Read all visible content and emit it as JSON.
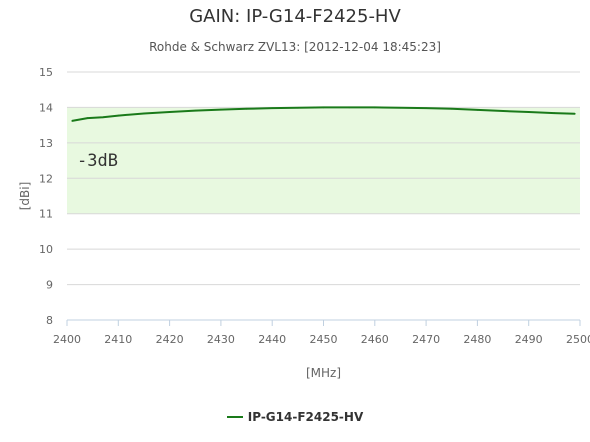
{
  "chart_data": {
    "type": "line",
    "title": "GAIN: IP-G14-F2425-HV",
    "subtitle": "Rohde & Schwarz ZVL13: [2012-12-04 18:45:23]",
    "xlabel": "[MHz]",
    "ylabel": "[dBi]",
    "xlim": [
      2400,
      2500
    ],
    "ylim": [
      8,
      15
    ],
    "xticks": [
      2400,
      2410,
      2420,
      2430,
      2440,
      2450,
      2460,
      2470,
      2480,
      2490,
      2500
    ],
    "yticks": [
      8,
      9,
      10,
      11,
      12,
      13,
      14,
      15
    ],
    "grid": "horizontal",
    "legend_position": "bottom-center",
    "band": {
      "from": 11,
      "to": 14,
      "label": "-3dB"
    },
    "series": [
      {
        "name": "IP-G14-F2425-HV",
        "x": [
          2401,
          2404,
          2407,
          2410,
          2415,
          2420,
          2425,
          2430,
          2435,
          2440,
          2445,
          2450,
          2455,
          2460,
          2465,
          2470,
          2475,
          2480,
          2485,
          2490,
          2495,
          2499
        ],
        "values": [
          13.62,
          13.7,
          13.72,
          13.77,
          13.83,
          13.87,
          13.91,
          13.94,
          13.96,
          13.98,
          13.99,
          14.0,
          14.0,
          14.0,
          13.99,
          13.98,
          13.96,
          13.93,
          13.9,
          13.87,
          13.84,
          13.82
        ]
      }
    ]
  },
  "colors": {
    "series": "#1a7a1a",
    "band_fill": "#e8f9e0",
    "grid": "#d8d8d8",
    "axis": "#c0d0e0",
    "tick_label": "#666666",
    "band_label": "#333333"
  }
}
